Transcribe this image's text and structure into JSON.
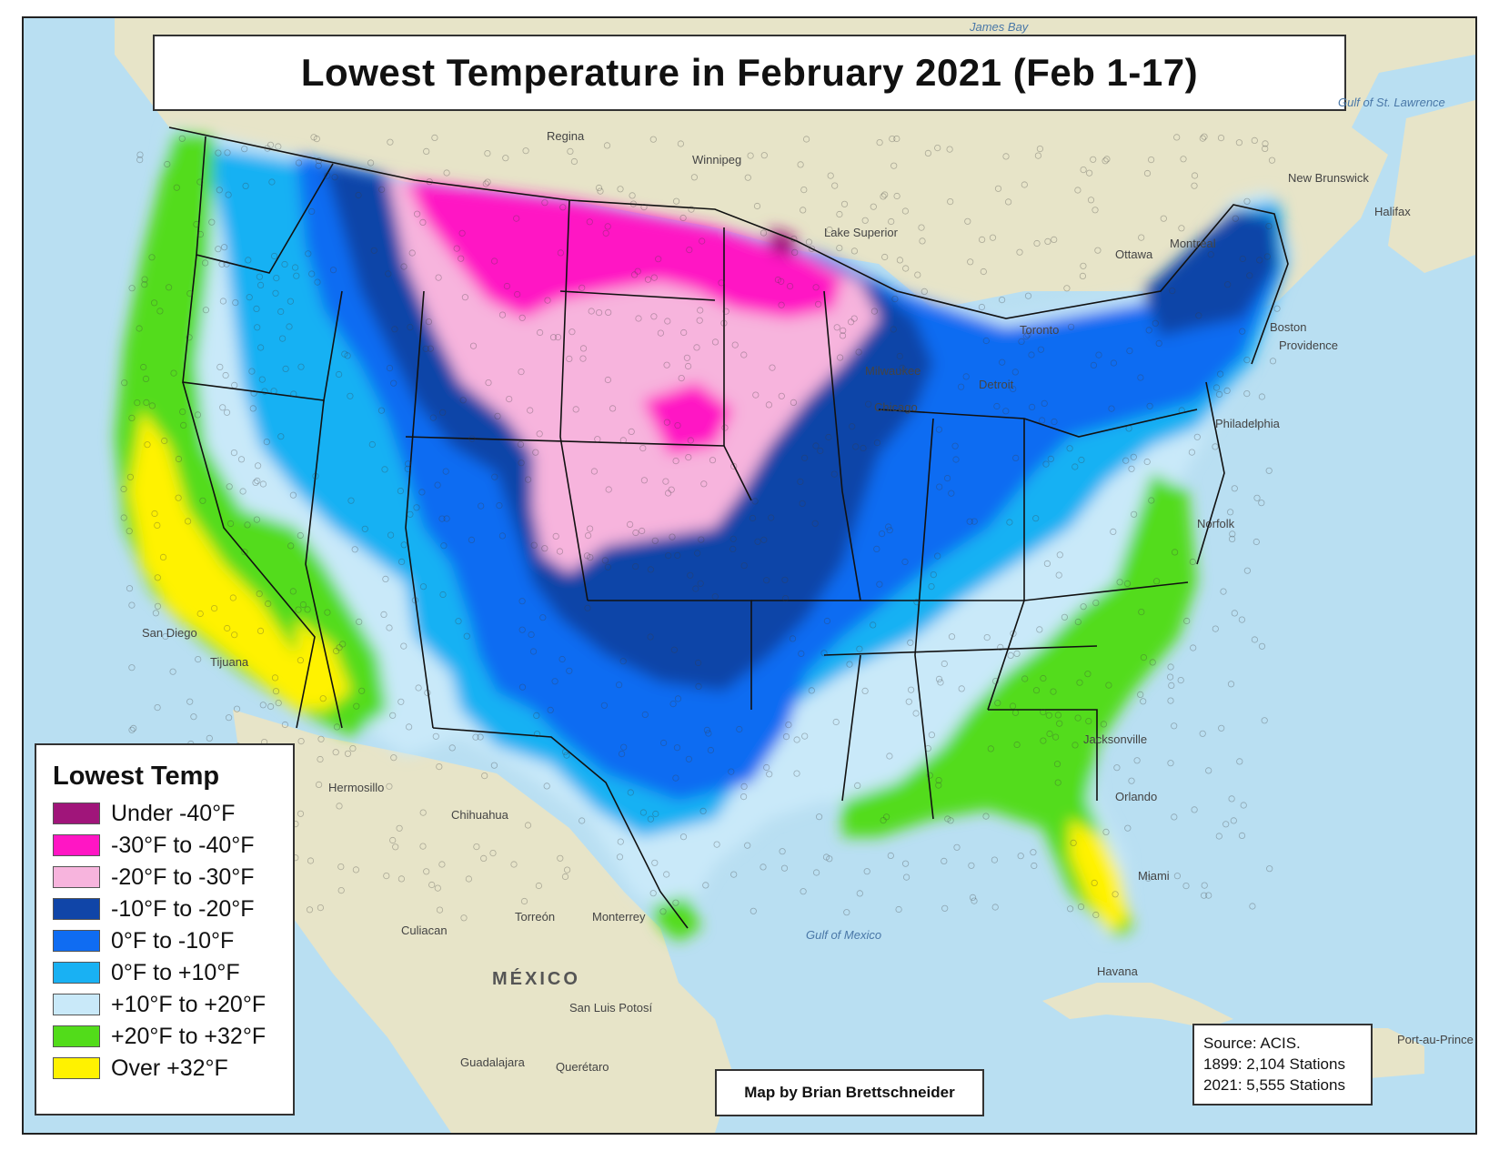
{
  "map": {
    "title": "Lowest Temperature in February 2021 (Feb 1-17)",
    "credit": "Map by Brian Brettschneider",
    "source": [
      "Source: ACIS.",
      "1899: 2,104 Stations",
      "2021: 5,555 Stations"
    ],
    "colors": {
      "ocean": "#b9dff2",
      "land_base": "#e7e4c8",
      "state_border": "#111111"
    },
    "legend": {
      "title": "Lowest Temp",
      "items": [
        {
          "label": "Under -40°F",
          "color": "#a0157a"
        },
        {
          "label": "-30°F to -40°F",
          "color": "#ff16c4"
        },
        {
          "label": "-20°F to -30°F",
          "color": "#f7b4dd"
        },
        {
          "label": "-10°F to -20°F",
          "color": "#1045a8"
        },
        {
          "label": "0°F to -10°F",
          "color": "#0f6cf2"
        },
        {
          "label": "0°F to +10°F",
          "color": "#19b1f3"
        },
        {
          "label": "+10°F to +20°F",
          "color": "#c9e9f9"
        },
        {
          "label": "+20°F to +32°F",
          "color": "#52dc1a"
        },
        {
          "label": "Over +32°F",
          "color": "#fff200"
        }
      ]
    },
    "places": [
      "Regina",
      "Winnipeg",
      "Lake Superior",
      "Ottawa",
      "Montreal",
      "Toronto",
      "Milwaukee",
      "Chicago",
      "Detroit",
      "Boston",
      "Providence",
      "Philadelphia",
      "Norfolk",
      "Jacksonville",
      "Orlando",
      "Miami",
      "Havana",
      "Port-au-Prince",
      "Gulf of Mexico",
      "Gulf of St. Lawrence",
      "New Brunswick",
      "Halifax",
      "James Bay",
      "San Diego",
      "Tijuana",
      "Hermosillo",
      "Chihuahua",
      "Culiacan",
      "Torreón",
      "Monterrey",
      "MÉXICO",
      "San Luis Potosí",
      "Guadalajara",
      "Querétaro"
    ]
  }
}
